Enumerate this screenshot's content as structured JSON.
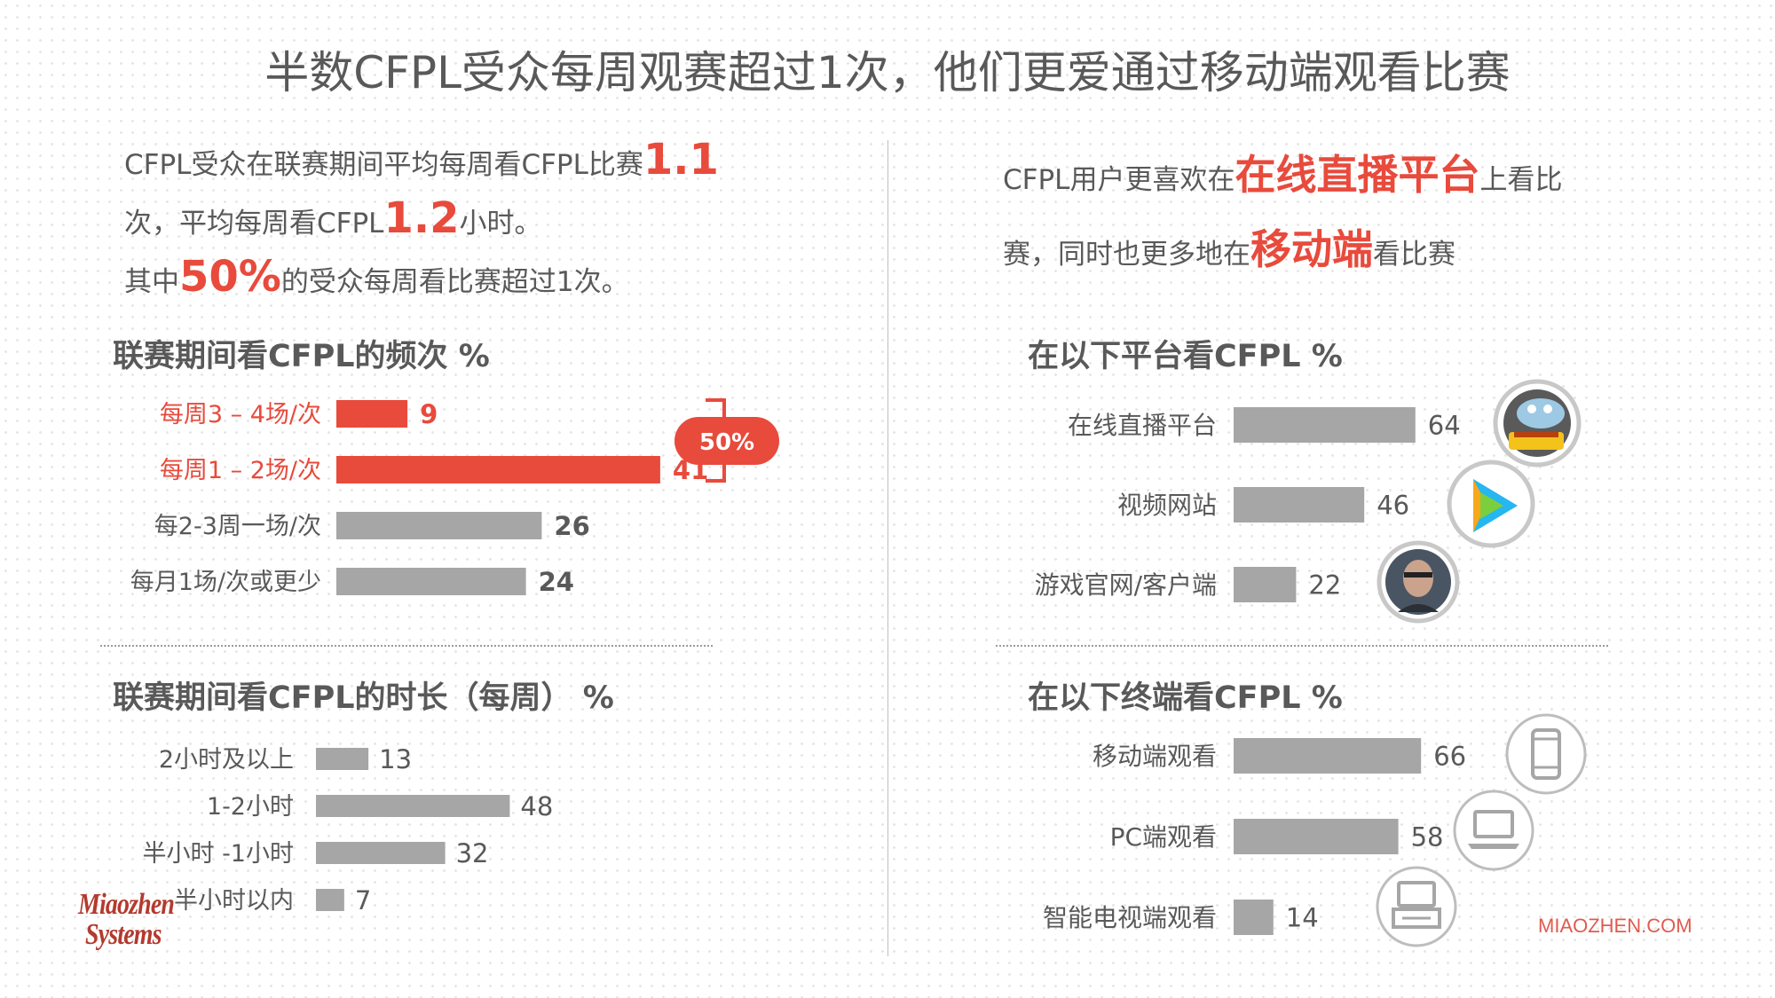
{
  "title": "半数CFPL受众每周观赛超过1次，他们更爱通过移动端观看比赛",
  "left_intro": {
    "p1": "CFPL受众在联赛期间平均每周看CFPL比赛",
    "v1": "1.1",
    "p2": "次，平均每周看CFPL",
    "v2": "1.2",
    "p3": "小时。",
    "p4": "其中",
    "v3": "50%",
    "p5": "的受众每周看比赛超过1次。"
  },
  "right_intro": {
    "p1": "CFPL用户更喜欢在",
    "h1": "在线直播平台",
    "p2": "上看比",
    "p3": "赛，同时也更多地在",
    "h2": "移动端",
    "p4": "看比赛"
  },
  "bracket_label": "50%",
  "watermark": {
    "logo_line1": "Miaozhen",
    "logo_line2": "Systems",
    "site": "MIAOZHEN.COM"
  },
  "colors": {
    "accent": "#e84a3c",
    "bar_gray": "#a6a6a6",
    "text": "#595959"
  },
  "chart_data": [
    {
      "type": "bar",
      "orientation": "horizontal",
      "title": "联赛期间看CFPL的频次 %",
      "categories": [
        "每周3 – 4场/次",
        "每周1 – 2场/次",
        "每2-3周一场/次",
        "每月1场/次或更少"
      ],
      "values": [
        9,
        41,
        26,
        24
      ],
      "highlight": [
        true,
        true,
        false,
        false
      ],
      "annotation": "50%"
    },
    {
      "type": "bar",
      "orientation": "horizontal",
      "title": "联赛期间看CFPL的时长（每周） %",
      "categories": [
        "2小时及以上",
        "1-2小时",
        "半小时 -1小时",
        "半小时以内"
      ],
      "values": [
        13,
        48,
        32,
        7
      ]
    },
    {
      "type": "bar",
      "orientation": "horizontal",
      "title": "在以下平台看CFPL %",
      "categories": [
        "在线直播平台",
        "视频网站",
        "游戏官网/客户端"
      ],
      "values": [
        64,
        46,
        22
      ],
      "icons": [
        "douyu-logo-icon",
        "video-play-icon",
        "game-avatar-icon"
      ]
    },
    {
      "type": "bar",
      "orientation": "horizontal",
      "title": "在以下终端看CFPL %",
      "categories": [
        "移动端观看",
        "PC端观看",
        "智能电视端观看"
      ],
      "values": [
        66,
        58,
        14
      ],
      "icons": [
        "smartphone-icon",
        "laptop-icon",
        "tv-icon"
      ]
    }
  ]
}
